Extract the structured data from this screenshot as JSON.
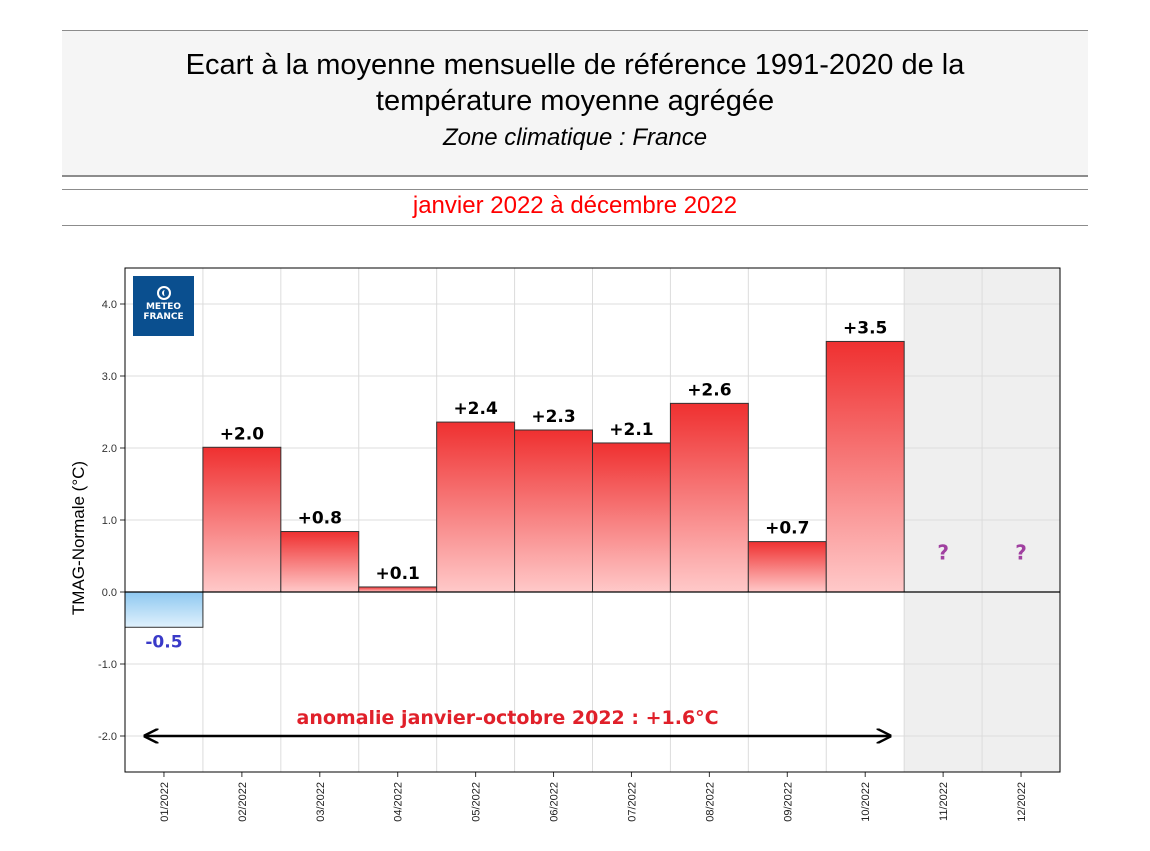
{
  "header": {
    "title_line1": "Ecart à la moyenne mensuelle de référence 1991-2020 de la",
    "title_line2": "température moyenne  agrégée",
    "subtitle": "Zone climatique : France",
    "period": "janvier 2022 à décembre 2022"
  },
  "logo": {
    "line1": "METEO",
    "line2": "FRANCE",
    "icon": "meteo-france-logo-icon"
  },
  "colors": {
    "positive_top": "#ef3030",
    "positive_bottom": "#ffc9c9",
    "negative_top": "#8ec8f0",
    "negative_bottom": "#e0f1fd",
    "negative_label": "#3a3ac8",
    "unknown_label": "#a040a0",
    "annotation": "#e0202a",
    "future_bg": "#efefef"
  },
  "chart_data": {
    "type": "bar",
    "ylabel": "TMAG-Normale (°C)",
    "ylim": [
      -2.5,
      4.5
    ],
    "yticks": [
      -2.0,
      -1.0,
      0.0,
      1.0,
      2.0,
      3.0,
      4.0
    ],
    "ytick_labels": [
      "-2.0",
      "-1.0",
      "0.0",
      "1.0",
      "2.0",
      "3.0",
      "4.0"
    ],
    "categories": [
      "01/2022",
      "02/2022",
      "03/2022",
      "04/2022",
      "05/2022",
      "06/2022",
      "07/2022",
      "08/2022",
      "09/2022",
      "10/2022",
      "11/2022",
      "12/2022"
    ],
    "values": [
      -0.49,
      2.01,
      0.84,
      0.07,
      2.36,
      2.25,
      2.07,
      2.62,
      0.7,
      3.48,
      null,
      null
    ],
    "labels": [
      "-0.5",
      "+2.0",
      "+0.8",
      "+0.1",
      "+2.4",
      "+2.3",
      "+2.1",
      "+2.6",
      "+0.7",
      "+3.5",
      "?",
      "?"
    ],
    "grid": true,
    "annotation": {
      "text": "anomalie janvier-octobre 2022 : +1.6°C",
      "from": "01/2022",
      "to": "10/2022",
      "y": -2.0
    }
  }
}
